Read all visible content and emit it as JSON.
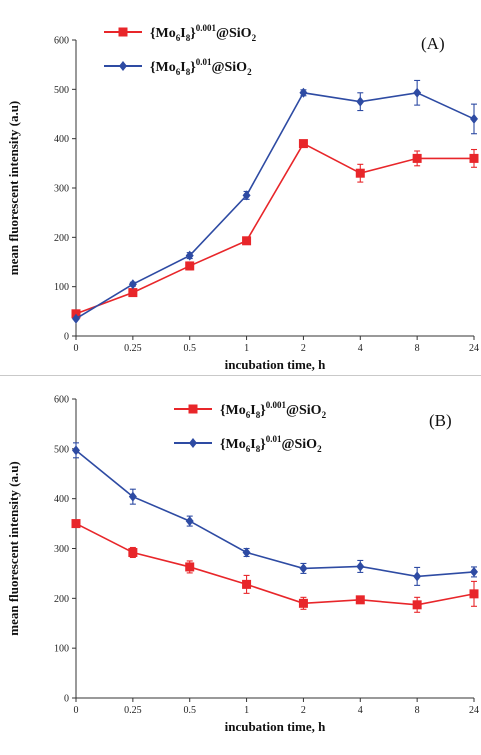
{
  "chart_data": [
    {
      "type": "line",
      "panel_label": "(A)",
      "categories": [
        "0",
        "0.25",
        "0.5",
        "1",
        "2",
        "4",
        "8",
        "24"
      ],
      "xlabel": "incubation time, h",
      "ylabel": "mean fluorescent intensity (a.u)",
      "ylim": [
        0,
        600
      ],
      "yticks": [
        "0",
        "100",
        "200",
        "300",
        "400",
        "500",
        "600"
      ],
      "legend_position": "top-left",
      "series": [
        {
          "name_base": "{Mo",
          "name_sub1": "6",
          "name_mid": "I",
          "name_sub2": "8",
          "name_close": "}",
          "name_sup": "0.001",
          "name_tail": "@SiO",
          "name_sub3": "2",
          "color": "#e8262a",
          "marker": "square",
          "values": [
            45,
            88,
            142,
            193,
            390,
            330,
            360,
            360
          ],
          "errors": [
            0,
            5,
            8,
            5,
            5,
            18,
            15,
            18
          ]
        },
        {
          "name_base": "{Mo",
          "name_sub1": "6",
          "name_mid": "I",
          "name_sub2": "8",
          "name_close": "}",
          "name_sup": "0.01",
          "name_tail": "@SiO",
          "name_sub3": "2",
          "color": "#2e4ba3",
          "marker": "diamond",
          "values": [
            35,
            105,
            163,
            285,
            493,
            475,
            493,
            440
          ],
          "errors": [
            0,
            4,
            6,
            8,
            6,
            18,
            25,
            30
          ]
        }
      ]
    },
    {
      "type": "line",
      "panel_label": "(B)",
      "categories": [
        "0",
        "0.25",
        "0.5",
        "1",
        "2",
        "4",
        "8",
        "24"
      ],
      "xlabel": "incubation time, h",
      "ylabel": "mean fluorescent intensity (a.u)",
      "ylim": [
        0,
        600
      ],
      "yticks": [
        "0",
        "100",
        "200",
        "300",
        "400",
        "500",
        "600"
      ],
      "legend_position": "top-center",
      "series": [
        {
          "name_base": "{Mo",
          "name_sub1": "6",
          "name_mid": "I",
          "name_sub2": "8",
          "name_close": "}",
          "name_sup": "0.001",
          "name_tail": "@SiO",
          "name_sub3": "2",
          "color": "#e8262a",
          "marker": "square",
          "values": [
            350,
            292,
            263,
            228,
            190,
            197,
            187,
            209
          ],
          "errors": [
            0,
            10,
            12,
            18,
            12,
            5,
            15,
            25
          ]
        },
        {
          "name_base": "{Mo",
          "name_sub1": "6",
          "name_mid": "I",
          "name_sub2": "8",
          "name_close": "}",
          "name_sup": "0.01",
          "name_tail": "@SiO",
          "name_sub3": "2",
          "color": "#2e4ba3",
          "marker": "diamond",
          "values": [
            497,
            404,
            355,
            292,
            260,
            264,
            244,
            253
          ],
          "errors": [
            15,
            15,
            10,
            8,
            10,
            12,
            18,
            10
          ]
        }
      ]
    }
  ]
}
